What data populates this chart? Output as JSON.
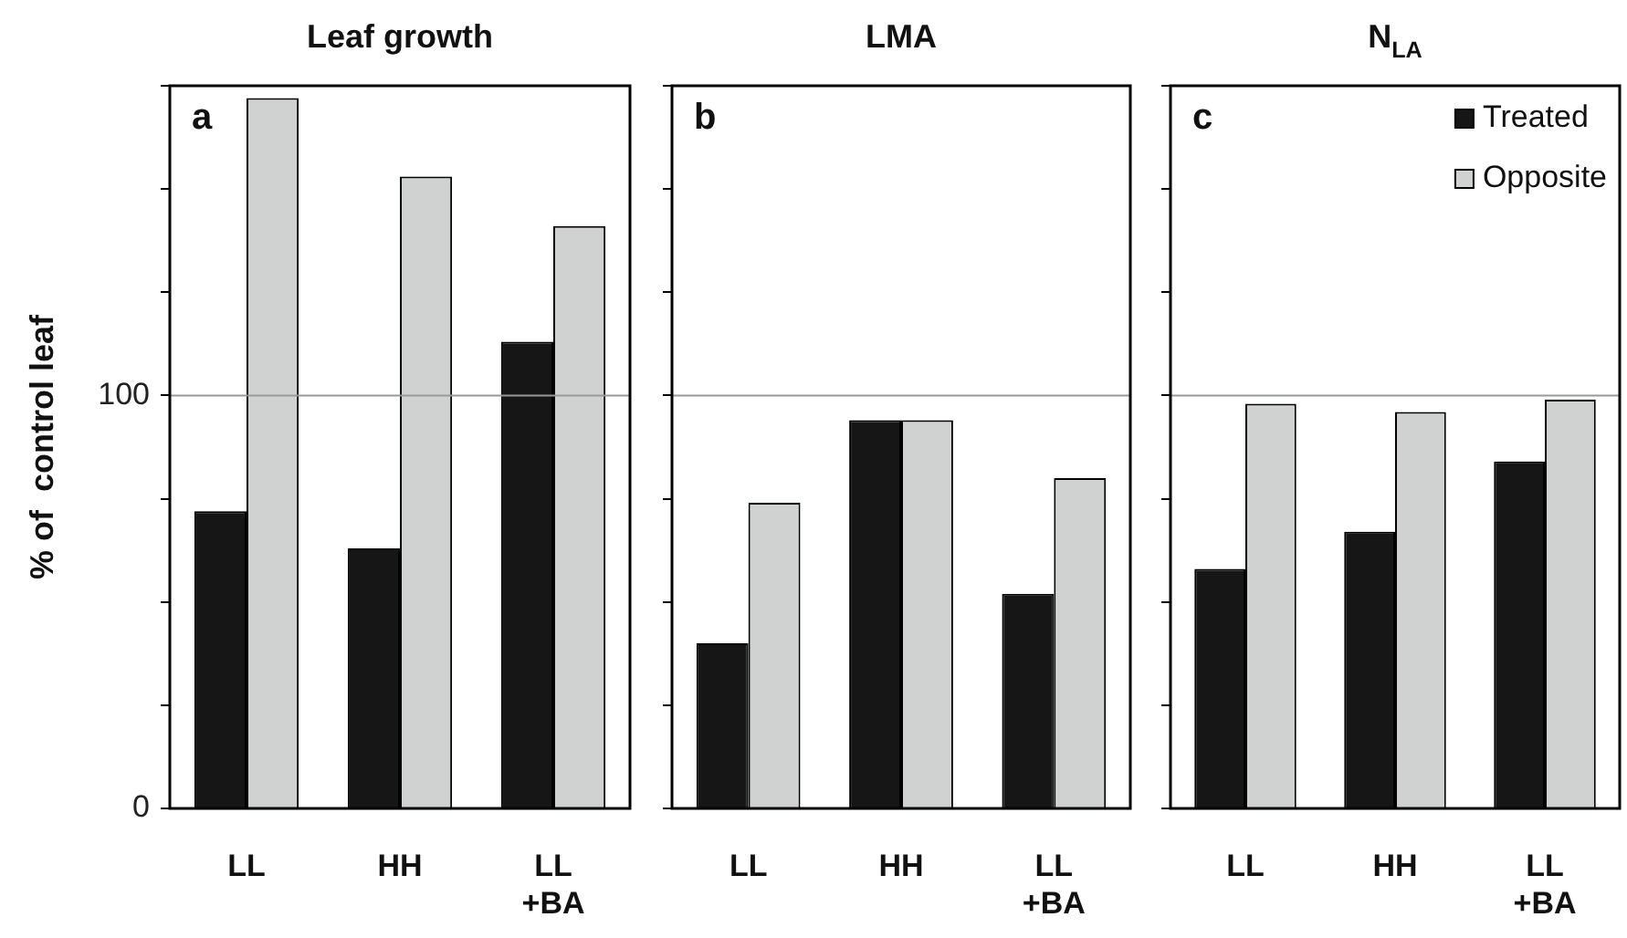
{
  "chart_data": [
    {
      "type": "bar",
      "title": "Leaf growth",
      "ylabel": "% of  control leaf",
      "categories": [
        "LL",
        "HH",
        "LL +BA"
      ],
      "series": [
        {
          "color": "#161616",
          "values": [
            72,
            63,
            113
          ]
        },
        {
          "color": "#d0d2d1",
          "values": [
            172,
            153,
            141
          ]
        }
      ],
      "ylim": [
        0,
        175
      ],
      "yticks": [
        0,
        {
          "value": 25,
          "label": null
        },
        {
          "value": 50,
          "label": null
        },
        {
          "value": 75,
          "label": null
        },
        100,
        {
          "value": 125,
          "label": null
        },
        {
          "value": 150,
          "label": null
        },
        {
          "value": 175,
          "label": null
        }
      ],
      "ref_lines": [
        {
          "axis": "y",
          "value": 100,
          "color": "#999999"
        }
      ],
      "annotations": [
        "a"
      ],
      "legend": false
    },
    {
      "type": "bar",
      "title": "LMA",
      "categories": [
        "LL",
        "HH",
        "LL +BA"
      ],
      "series": [
        {
          "color": "#161616",
          "values": [
            40,
            94,
            52
          ]
        },
        {
          "color": "#d0d2d1",
          "values": [
            74,
            94,
            80
          ]
        }
      ],
      "ylim": [
        0,
        175
      ],
      "yticks": [
        {
          "value": 0,
          "label": null
        },
        {
          "value": 25,
          "label": null
        },
        {
          "value": 50,
          "label": null
        },
        {
          "value": 75,
          "label": null
        },
        {
          "value": 100,
          "label": null
        },
        {
          "value": 125,
          "label": null
        },
        {
          "value": 150,
          "label": null
        },
        {
          "value": 175,
          "label": null
        }
      ],
      "tick_labels": "x",
      "ref_lines": [
        {
          "axis": "y",
          "value": 100,
          "color": "#999999"
        }
      ],
      "annotations": [
        "b"
      ],
      "legend": false
    },
    {
      "type": "bar",
      "title": "N$_{LA}$",
      "categories": [
        "LL",
        "HH",
        "LL +BA"
      ],
      "series": [
        {
          "name": "Treated",
          "color": "#161616",
          "values": [
            58,
            67,
            84
          ]
        },
        {
          "name": "Opposite",
          "color": "#d0d2d1",
          "values": [
            98,
            96,
            99
          ]
        }
      ],
      "ylim": [
        0,
        175
      ],
      "yticks": [
        {
          "value": 0,
          "label": null
        },
        {
          "value": 25,
          "label": null
        },
        {
          "value": 50,
          "label": null
        },
        {
          "value": 75,
          "label": null
        },
        {
          "value": 100,
          "label": null
        },
        {
          "value": 125,
          "label": null
        },
        {
          "value": 150,
          "label": null
        },
        {
          "value": 175,
          "label": null
        }
      ],
      "tick_labels": "x",
      "ref_lines": [
        {
          "axis": "y",
          "value": 100,
          "color": "#999999"
        }
      ],
      "annotations": [
        "c"
      ],
      "legend": "top right"
    }
  ]
}
